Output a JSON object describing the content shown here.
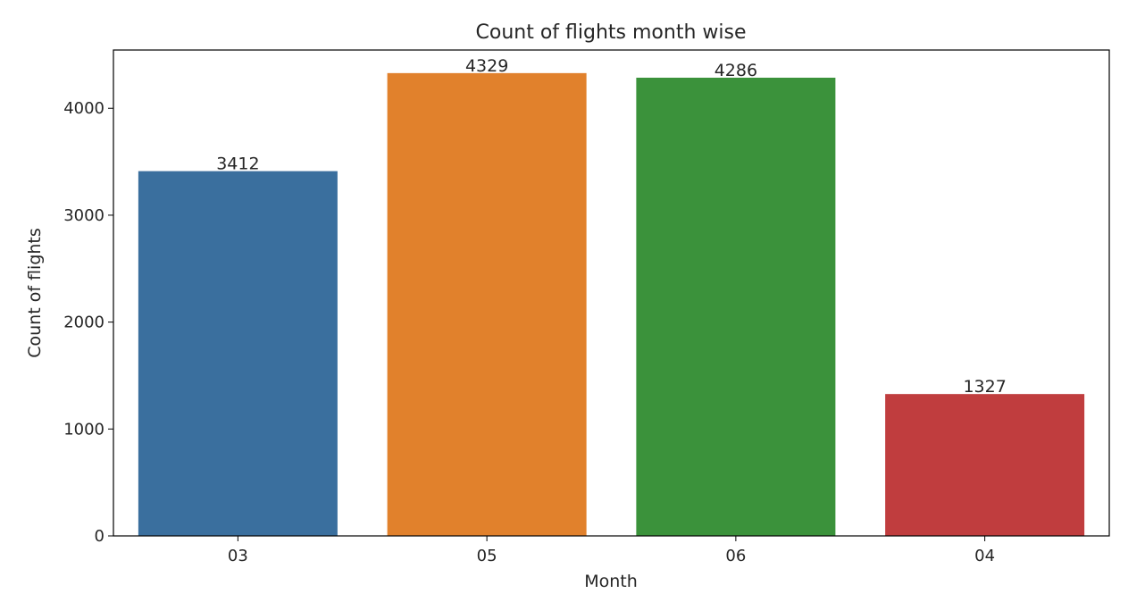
{
  "chart_data": {
    "type": "bar",
    "title": "Count of flights month wise",
    "xlabel": "Month",
    "ylabel": "Count of flights",
    "categories": [
      "03",
      "05",
      "06",
      "04"
    ],
    "values": [
      3412,
      4329,
      4286,
      1327
    ],
    "data_labels": [
      "3412",
      "4329",
      "4286",
      "1327"
    ],
    "colors": [
      "#3a6f9e",
      "#e1812c",
      "#3b923b",
      "#c03d3e"
    ],
    "ylim": [
      0,
      4545
    ],
    "yticks": [
      0,
      1000,
      2000,
      3000,
      4000
    ],
    "ytick_labels": [
      "0",
      "1000",
      "2000",
      "3000",
      "4000"
    ],
    "grid": false,
    "legend": "none"
  }
}
